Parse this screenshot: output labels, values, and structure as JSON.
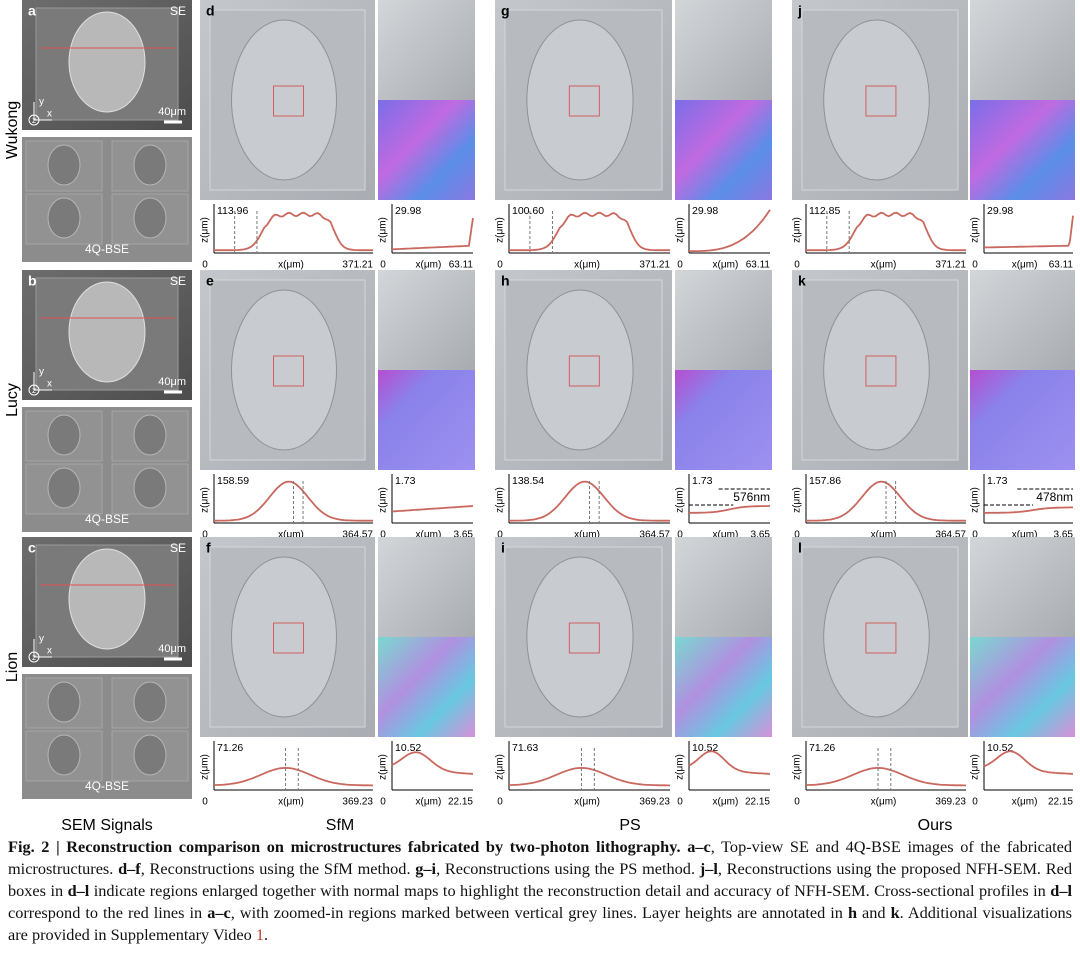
{
  "column_labels": [
    "SEM Signals",
    "SfM",
    "PS",
    "Ours"
  ],
  "rows": [
    {
      "name": "Wukong",
      "sem": {
        "letter": "a",
        "se": "SE",
        "scale": "40μm",
        "bse": "4Q-BSE",
        "axes": [
          "y",
          "x",
          "z"
        ]
      },
      "methods": [
        {
          "letter": "d",
          "profile": {
            "ymax": "113.96",
            "xmax": "371.21",
            "origin": "0",
            "y_label": "z(μm)",
            "x_label": "x(μm)"
          },
          "zoom": {
            "ymax": "29.98",
            "xmax": "63.11",
            "origin": "0",
            "y_label": "z(μm)",
            "x_label": "x(μm)"
          }
        },
        {
          "letter": "g",
          "profile": {
            "ymax": "100.60",
            "xmax": "371.21",
            "origin": "0",
            "y_label": "z(μm)",
            "x_label": "x(μm)"
          },
          "zoom": {
            "ymax": "29.98",
            "xmax": "63.11",
            "origin": "0",
            "y_label": "z(μm)",
            "x_label": "x(μm)"
          }
        },
        {
          "letter": "j",
          "profile": {
            "ymax": "112.85",
            "xmax": "371.21",
            "origin": "0",
            "y_label": "z(μm)",
            "x_label": "x(μm)"
          },
          "zoom": {
            "ymax": "29.98",
            "xmax": "63.11",
            "origin": "0",
            "y_label": "z(μm)",
            "x_label": "x(μm)"
          }
        }
      ]
    },
    {
      "name": "Lucy",
      "sem": {
        "letter": "b",
        "se": "SE",
        "scale": "40μm",
        "bse": "4Q-BSE",
        "axes": [
          "y",
          "x",
          "z"
        ]
      },
      "methods": [
        {
          "letter": "e",
          "profile": {
            "ymax": "158.59",
            "xmax": "364.57",
            "origin": "0",
            "y_label": "z(μm)",
            "x_label": "x(μm)"
          },
          "zoom": {
            "ymax": "1.73",
            "xmax": "3.65",
            "origin": "0",
            "y_label": "z(μm)",
            "x_label": "x(μm)"
          }
        },
        {
          "letter": "h",
          "profile": {
            "ymax": "138.54",
            "xmax": "364.57",
            "origin": "0",
            "y_label": "z(μm)",
            "x_label": "x(μm)"
          },
          "zoom": {
            "ymax": "1.73",
            "xmax": "3.65",
            "origin": "0",
            "y_label": "z(μm)",
            "x_label": "x(μm)",
            "annotation": "576nm"
          }
        },
        {
          "letter": "k",
          "profile": {
            "ymax": "157.86",
            "xmax": "364.57",
            "origin": "0",
            "y_label": "z(μm)",
            "x_label": "x(μm)"
          },
          "zoom": {
            "ymax": "1.73",
            "xmax": "3.65",
            "origin": "0",
            "y_label": "z(μm)",
            "x_label": "x(μm)",
            "annotation": "478nm"
          }
        }
      ]
    },
    {
      "name": "Lion",
      "sem": {
        "letter": "c",
        "se": "SE",
        "scale": "40μm",
        "bse": "4Q-BSE",
        "axes": [
          "y",
          "x",
          "z"
        ]
      },
      "methods": [
        {
          "letter": "f",
          "profile": {
            "ymax": "71.26",
            "xmax": "369.23",
            "origin": "0",
            "y_label": "z(μm)",
            "x_label": "x(μm)"
          },
          "zoom": {
            "ymax": "10.52",
            "xmax": "22.15",
            "origin": "0",
            "y_label": "z(μm)",
            "x_label": "x(μm)"
          }
        },
        {
          "letter": "i",
          "profile": {
            "ymax": "71.63",
            "xmax": "369.23",
            "origin": "0",
            "y_label": "z(μm)",
            "x_label": "x(μm)"
          },
          "zoom": {
            "ymax": "10.52",
            "xmax": "22.15",
            "origin": "0",
            "y_label": "z(μm)",
            "x_label": "x(μm)"
          }
        },
        {
          "letter": "l",
          "profile": {
            "ymax": "71.26",
            "xmax": "369.23",
            "origin": "0",
            "y_label": "z(μm)",
            "x_label": "x(μm)"
          },
          "zoom": {
            "ymax": "10.52",
            "xmax": "22.15",
            "origin": "0",
            "y_label": "z(μm)",
            "x_label": "x(μm)"
          }
        }
      ]
    }
  ],
  "caption": [
    {
      "text": "Fig. 2 | Reconstruction comparison on microstructures fabricated by two-photon lithography.",
      "style": "bold"
    },
    {
      "text": " ",
      "style": "normal"
    },
    {
      "text": "a–c",
      "style": "bold"
    },
    {
      "text": ", Top-view SE and 4Q-BSE images of the fabricated microstructures. ",
      "style": "normal"
    },
    {
      "text": "d–f",
      "style": "bold"
    },
    {
      "text": ", Reconstructions using the SfM method. ",
      "style": "normal"
    },
    {
      "text": "g–i",
      "style": "bold"
    },
    {
      "text": ", Reconstructions using the PS method. ",
      "style": "normal"
    },
    {
      "text": "j–l",
      "style": "bold"
    },
    {
      "text": ", Reconstructions using the proposed NFH-SEM. Red boxes in ",
      "style": "normal"
    },
    {
      "text": "d–l",
      "style": "bold"
    },
    {
      "text": " indicate regions enlarged together with normal maps to highlight the reconstruction detail and accuracy of NFH-SEM. Cross-sectional profiles in ",
      "style": "normal"
    },
    {
      "text": "d–l",
      "style": "bold"
    },
    {
      "text": " correspond to the red lines in ",
      "style": "normal"
    },
    {
      "text": "a–c",
      "style": "bold"
    },
    {
      "text": ", with zoomed-in regions marked between vertical grey lines. Layer heights are annotated in ",
      "style": "normal"
    },
    {
      "text": "h",
      "style": "bold"
    },
    {
      "text": " and ",
      "style": "normal"
    },
    {
      "text": "k",
      "style": "bold"
    },
    {
      "text": ". Additional visualizations are provided in Supplementary Video ",
      "style": "normal"
    },
    {
      "text": "1",
      "style": "link"
    },
    {
      "text": ".",
      "style": "normal"
    }
  ]
}
